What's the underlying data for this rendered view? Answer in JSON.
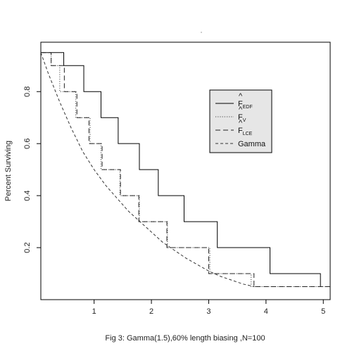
{
  "chart_data": {
    "type": "line",
    "xlabel": "Fig 3: Gamma(1.5),60% length biasing ,N=100",
    "ylabel": "Percent Surviving",
    "xlim": [
      0.07,
      5.12
    ],
    "ylim": [
      0.0,
      0.99
    ],
    "xticks": [
      1,
      2,
      3,
      4,
      5
    ],
    "yticks": [
      0.2,
      0.4,
      0.6,
      0.8
    ],
    "grid": false,
    "legend_position": "top-right",
    "legend_background": "#e6e6e6",
    "series": [
      {
        "name": "F_EDF",
        "legend_label": "F",
        "legend_sub": "EDF",
        "style": "solid",
        "color": "#000000",
        "x": [
          0.07,
          0.18,
          0.47,
          0.82,
          1.12,
          1.42,
          1.79,
          2.12,
          2.57,
          3.15,
          4.07,
          4.95
        ],
        "y": [
          0.95,
          0.95,
          0.9,
          0.8,
          0.7,
          0.6,
          0.5,
          0.4,
          0.3,
          0.2,
          0.1,
          0.05
        ]
      },
      {
        "name": "F_V",
        "legend_label": "F",
        "legend_sub": "V",
        "style": "dotted",
        "color": "#444444",
        "x": [
          0.07,
          0.25,
          0.4,
          0.68,
          0.93,
          1.12,
          1.45,
          1.79,
          2.28,
          3.02,
          3.74,
          5.12
        ],
        "y": [
          0.95,
          0.9,
          0.8,
          0.7,
          0.6,
          0.5,
          0.4,
          0.3,
          0.2,
          0.1,
          0.05,
          0.05
        ]
      },
      {
        "name": "F_LCE",
        "legend_label": "F",
        "legend_sub": "LCE",
        "style": "longdash",
        "color": "#222222",
        "x": [
          0.07,
          0.25,
          0.48,
          0.7,
          0.91,
          1.14,
          1.46,
          1.78,
          2.27,
          3.0,
          3.79,
          5.12
        ],
        "y": [
          0.95,
          0.9,
          0.8,
          0.7,
          0.6,
          0.5,
          0.4,
          0.3,
          0.2,
          0.1,
          0.05,
          0.05
        ]
      },
      {
        "name": "Gamma",
        "legend_label": "Gamma",
        "legend_sub": "",
        "style": "dashed",
        "color": "#333333",
        "type": "smooth",
        "x": [
          0.07,
          0.2,
          0.4,
          0.6,
          0.8,
          1.0,
          1.2,
          1.4,
          1.6,
          1.8,
          2.0,
          2.2,
          2.4,
          2.6,
          2.8,
          3.0,
          3.2,
          3.4,
          3.6,
          3.8
        ],
        "y": [
          0.95,
          0.87,
          0.76,
          0.66,
          0.57,
          0.5,
          0.44,
          0.39,
          0.34,
          0.3,
          0.26,
          0.22,
          0.19,
          0.16,
          0.135,
          0.11,
          0.09,
          0.075,
          0.06,
          0.05
        ]
      }
    ]
  }
}
